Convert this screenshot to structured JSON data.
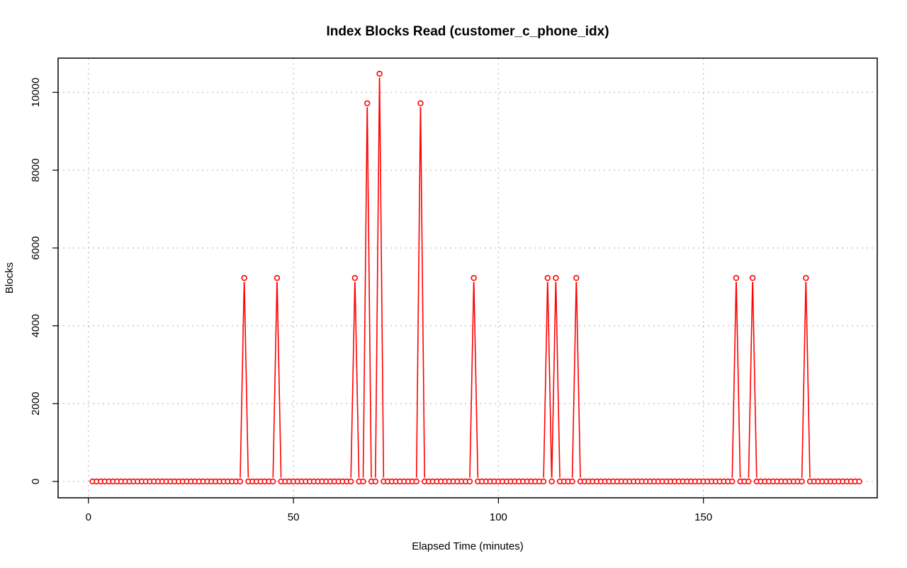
{
  "chart_data": {
    "type": "line",
    "title": "Index Blocks Read (customer_c_phone_idx)",
    "xlabel": "Elapsed Time (minutes)",
    "ylabel": "Blocks",
    "xlim": [
      -7.4,
      192.4
    ],
    "ylim": [
      -420,
      10880
    ],
    "x_ticks": [
      0,
      50,
      100,
      150
    ],
    "y_ticks": [
      0,
      2000,
      4000,
      6000,
      8000,
      10000
    ],
    "grid": true,
    "series": [
      {
        "color": "#ff0000",
        "x_start": 1,
        "x_step": 1,
        "values": [
          0,
          0,
          0,
          0,
          0,
          0,
          0,
          0,
          0,
          0,
          0,
          0,
          0,
          0,
          0,
          0,
          0,
          0,
          0,
          0,
          0,
          0,
          0,
          0,
          0,
          0,
          0,
          0,
          0,
          0,
          0,
          0,
          0,
          0,
          0,
          0,
          0,
          5230,
          0,
          0,
          0,
          0,
          0,
          0,
          0,
          5230,
          0,
          0,
          0,
          0,
          0,
          0,
          0,
          0,
          0,
          0,
          0,
          0,
          0,
          0,
          0,
          0,
          0,
          0,
          5230,
          0,
          0,
          9720,
          0,
          0,
          10480,
          0,
          0,
          0,
          0,
          0,
          0,
          0,
          0,
          0,
          9720,
          0,
          0,
          0,
          0,
          0,
          0,
          0,
          0,
          0,
          0,
          0,
          0,
          5230,
          0,
          0,
          0,
          0,
          0,
          0,
          0,
          0,
          0,
          0,
          0,
          0,
          0,
          0,
          0,
          0,
          0,
          5230,
          0,
          5230,
          0,
          0,
          0,
          0,
          5230,
          0,
          0,
          0,
          0,
          0,
          0,
          0,
          0,
          0,
          0,
          0,
          0,
          0,
          0,
          0,
          0,
          0,
          0,
          0,
          0,
          0,
          0,
          0,
          0,
          0,
          0,
          0,
          0,
          0,
          0,
          0,
          0,
          0,
          0,
          0,
          0,
          0,
          0,
          5230,
          0,
          0,
          0,
          5230,
          0,
          0,
          0,
          0,
          0,
          0,
          0,
          0,
          0,
          0,
          0,
          0,
          5230,
          0,
          0,
          0,
          0,
          0,
          0,
          0,
          0,
          0,
          0,
          0,
          0,
          0
        ]
      }
    ]
  }
}
